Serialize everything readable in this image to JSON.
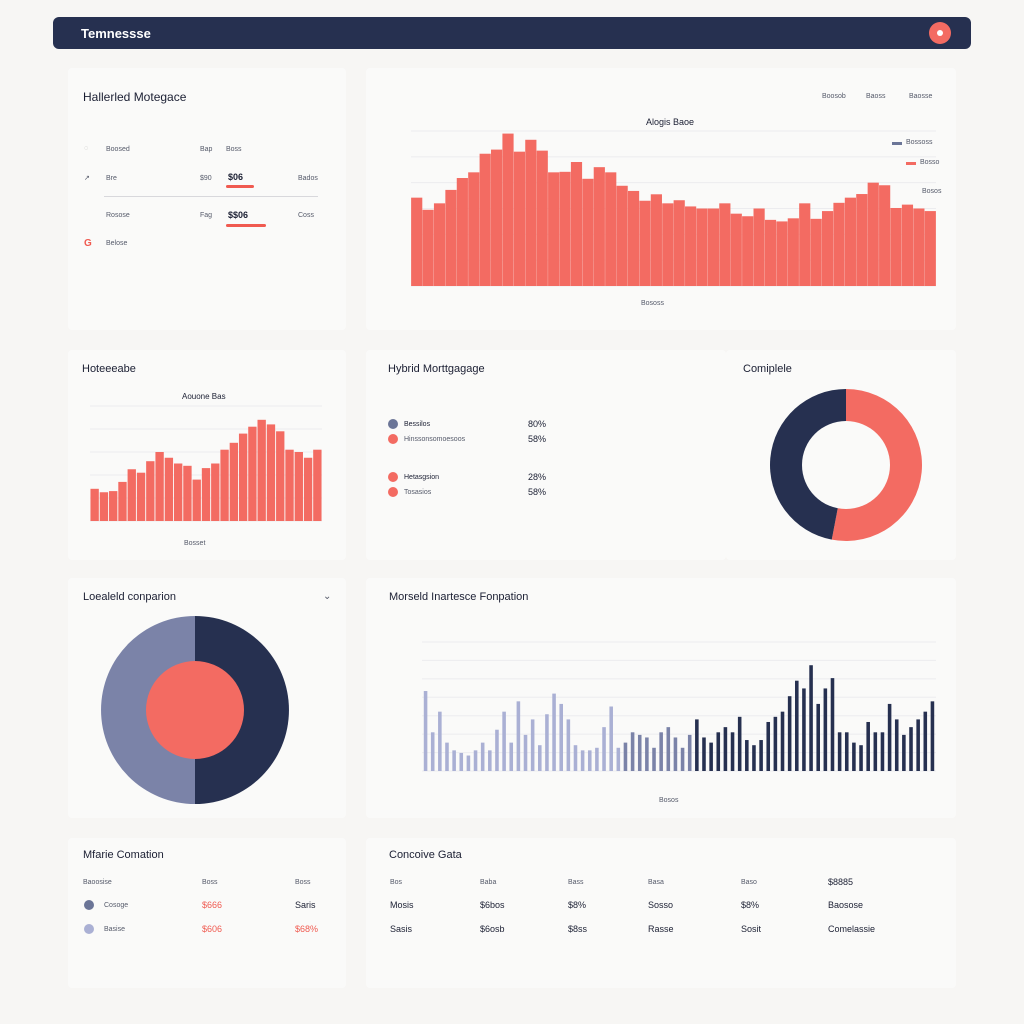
{
  "header": {
    "title": "Temnessse"
  },
  "panel1": {
    "title": "Hallerled Motegace",
    "rows": [
      {
        "label": "Boosed",
        "col2": "Bap",
        "col3": "Boss",
        "right": ""
      },
      {
        "label": "Bre",
        "col2": "$90",
        "col3": "$06",
        "right": "Bados"
      },
      {
        "label": "Rosose",
        "col2": "Fag",
        "col3": "$$06",
        "right": "Coss"
      },
      {
        "label": "Belose",
        "col2": "",
        "col3": "",
        "right": ""
      }
    ]
  },
  "chart1": {
    "links": [
      "Boosob",
      "Baoss",
      "Baosse"
    ],
    "legend": [
      "Bossoss",
      "Bosso",
      "Bosos"
    ],
    "title": "Alogis Baoe",
    "xlabel": "Bososs"
  },
  "panel3": {
    "title": "Hoteeeabe"
  },
  "chart2": {
    "title": "Aouone Bas",
    "xlabel": "Bosset"
  },
  "panel4": {
    "title": "Hybrid Morttgagage",
    "items": [
      {
        "label": "Bessilos",
        "value": "80%",
        "color": "#6b7597"
      },
      {
        "label": "Hinssonsomoesoos",
        "value": "58%",
        "color": "#f36b62"
      },
      {
        "label": "Hetasgsion",
        "value": "28%",
        "color": "#f36b62"
      },
      {
        "label": "Tosasios",
        "value": "58%",
        "color": "#f36b62"
      }
    ]
  },
  "panel5": {
    "title": "Comiplele"
  },
  "panel6": {
    "title": "Loealeld conparion"
  },
  "chart3": {
    "title": "Morseld Inartesce Fonpation",
    "xlabel": "Bosos"
  },
  "panel8": {
    "title": "Mfarie Comation",
    "headers": [
      "Baoosise",
      "Boss",
      "Boss"
    ],
    "rows": [
      {
        "label": "Cosoge",
        "v1": "$666",
        "v2": "Saris",
        "dot": "#6b7597"
      },
      {
        "label": "Basise",
        "v1": "$606",
        "v2": "$68%",
        "dot": "#aab0d4"
      }
    ]
  },
  "panel9": {
    "title": "Concoive Gata",
    "headers": [
      "Bos",
      "Baba",
      "Bass",
      "Basa",
      "Baso",
      "$8885"
    ],
    "rows": [
      [
        "Mosis",
        "$6bos",
        "$8%",
        "Sosso",
        "$8%",
        "Baosose"
      ],
      [
        "Sasis",
        "$6osb",
        "$8ss",
        "Rasse",
        "Sosit",
        "Comelassie"
      ]
    ]
  },
  "colors": {
    "navy": "#263050",
    "coral": "#f36b62",
    "slate": "#7b83a8",
    "lavender": "#aab0d4"
  },
  "chart_data": [
    {
      "type": "bar",
      "title": "Alogis Baoe",
      "xlabel": "Bososs",
      "ylim": [
        0,
        600
      ],
      "values": [
        342,
        295,
        320,
        372,
        418,
        440,
        512,
        528,
        590,
        520,
        566,
        524,
        440,
        442,
        480,
        415,
        460,
        440,
        388,
        368,
        330,
        355,
        320,
        332,
        308,
        300,
        300,
        320,
        280,
        270,
        300,
        256,
        250,
        262,
        320,
        260,
        290,
        322,
        342,
        356,
        400,
        390,
        302,
        315,
        300,
        290
      ]
    },
    {
      "type": "bar",
      "title": "Aouone Bas",
      "xlabel": "Bosset",
      "ylim": [
        0,
        100
      ],
      "values": [
        28,
        25,
        26,
        34,
        45,
        42,
        52,
        60,
        55,
        50,
        48,
        36,
        46,
        50,
        62,
        68,
        76,
        82,
        88,
        84,
        78,
        62,
        60,
        55,
        62
      ]
    },
    {
      "type": "bar",
      "title": "Morseld Inartesce Fonpation",
      "xlabel": "Bosos",
      "ylim": [
        0,
        100
      ],
      "values": [
        62,
        30,
        46,
        22,
        16,
        14,
        12,
        16,
        22,
        16,
        32,
        46,
        22,
        54,
        28,
        40,
        20,
        44,
        60,
        52,
        40,
        20,
        16,
        16,
        18,
        34,
        50,
        18,
        22,
        30,
        28,
        26,
        18,
        30,
        34,
        26,
        18,
        28,
        40,
        26,
        22,
        30,
        34,
        30,
        42,
        24,
        20,
        24,
        38,
        42,
        46,
        58,
        70,
        64,
        82,
        52,
        64,
        72,
        30,
        30,
        22,
        20,
        38,
        30,
        30,
        52,
        40,
        28,
        34,
        40,
        46,
        54
      ]
    },
    {
      "type": "pie",
      "title": "Comiplele",
      "values": [
        53,
        47
      ],
      "colors": [
        "#f36b62",
        "#263050"
      ]
    },
    {
      "type": "pie",
      "title": "Loealeld conparion",
      "values": [
        50,
        50
      ],
      "colors": [
        "#263050",
        "#7b83a8"
      ]
    }
  ]
}
